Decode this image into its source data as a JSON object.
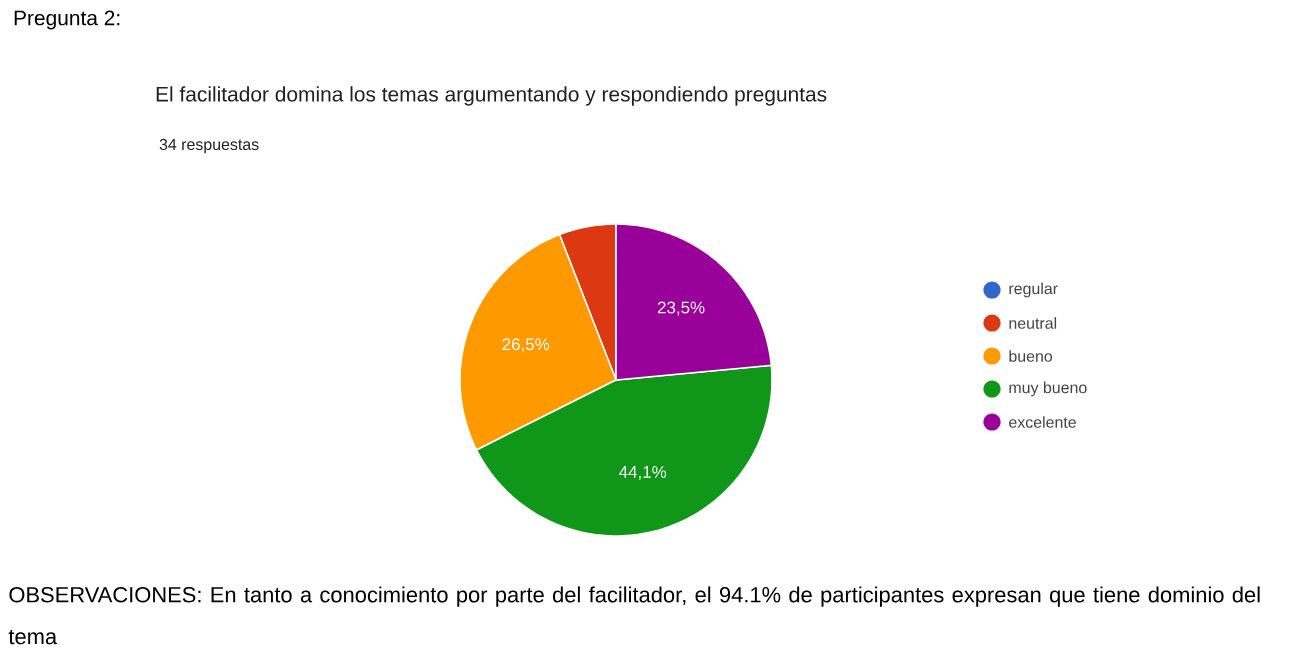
{
  "chart_data": {
    "type": "pie",
    "title": "El facilitador domina los temas argumentando y respondiendo preguntas",
    "subtitle": "34 respuestas",
    "categories": [
      "regular",
      "neutral",
      "bueno",
      "muy bueno",
      "excelente"
    ],
    "values": [
      0,
      5.9,
      26.5,
      44.1,
      23.5
    ],
    "colors": [
      "#3366cc",
      "#dc3912",
      "#ff9900",
      "#109618",
      "#990099"
    ],
    "value_labels": [
      null,
      null,
      "26,5%",
      "44,1%",
      "23,5%"
    ],
    "legend": "right",
    "annotations": [
      "Pregunta 2:",
      "OBSERVACIONES: En tanto a conocimiento por parte del facilitador, el  94.1% de participantes expresan que tiene dominio del tema"
    ]
  }
}
